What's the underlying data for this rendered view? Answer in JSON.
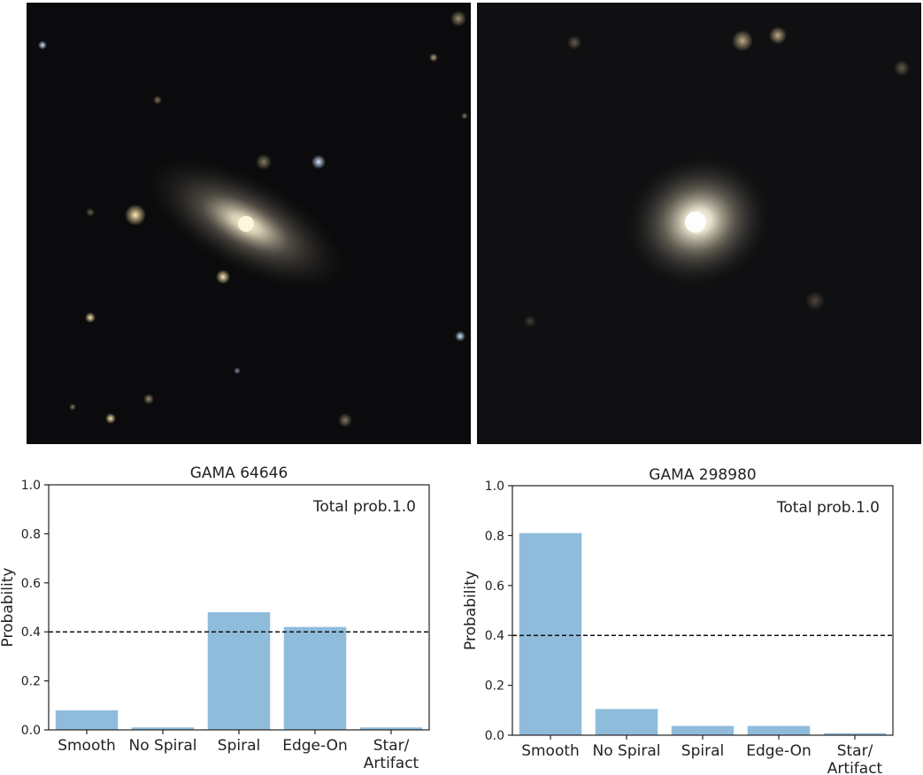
{
  "colors": {
    "bar": "#90bcdc",
    "axis": "#222222",
    "threshold": "#111111",
    "image_bg": "#0b0b0d"
  },
  "images": [
    {
      "id": "galaxy-image-left"
    },
    {
      "id": "galaxy-image-right"
    }
  ],
  "chart_data": [
    {
      "type": "bar",
      "title": "GAMA 64646",
      "annotation": "Total prob.1.0",
      "xlabel": "",
      "ylabel": "Probability",
      "categories": [
        [
          "Smooth"
        ],
        [
          "No Spiral"
        ],
        [
          "Spiral"
        ],
        [
          "Edge-On"
        ],
        [
          "Star/",
          "Artifact"
        ]
      ],
      "values": [
        0.08,
        0.01,
        0.48,
        0.42,
        0.01
      ],
      "ylim": [
        0,
        1.0
      ],
      "yticks": [
        "0.0",
        "0.2",
        "0.4",
        "0.6",
        "0.8",
        "1.0"
      ],
      "threshold": 0.4,
      "grid": false
    },
    {
      "type": "bar",
      "title": "GAMA 298980",
      "annotation": "Total prob.1.0",
      "xlabel": "",
      "ylabel": "Probability",
      "categories": [
        [
          "Smooth"
        ],
        [
          "No Spiral"
        ],
        [
          "Spiral"
        ],
        [
          "Edge-On"
        ],
        [
          "Star/",
          "Artifact"
        ]
      ],
      "values": [
        0.81,
        0.105,
        0.037,
        0.037,
        0.008
      ],
      "ylim": [
        0,
        1.0
      ],
      "yticks": [
        "0.0",
        "0.2",
        "0.4",
        "0.6",
        "0.8",
        "1.0"
      ],
      "threshold": 0.4,
      "grid": false
    }
  ]
}
